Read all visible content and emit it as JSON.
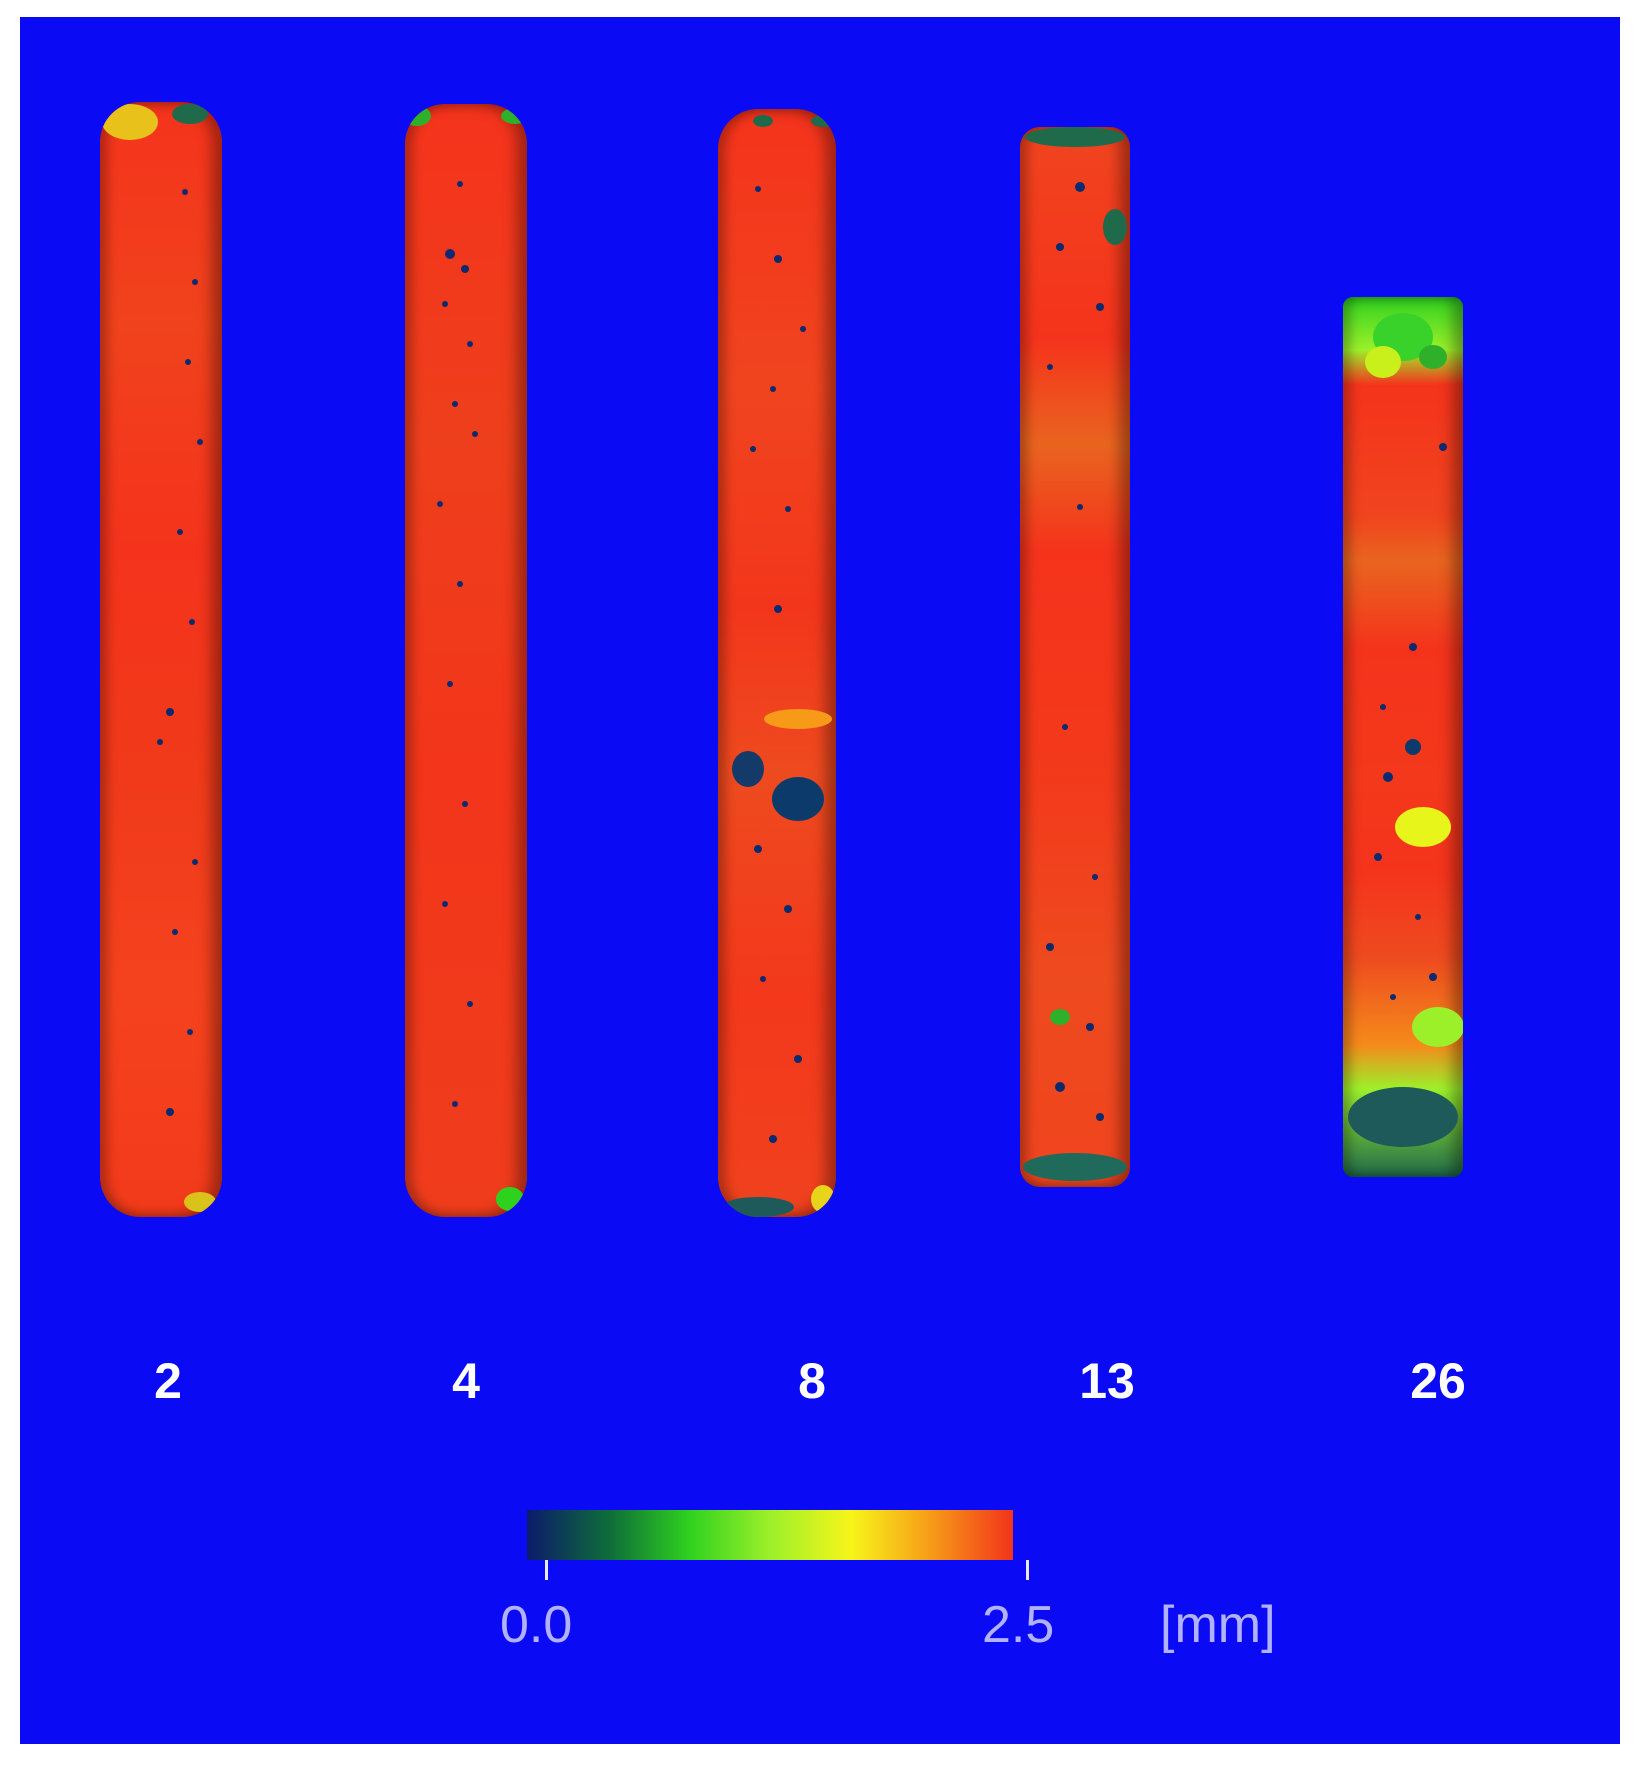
{
  "figure": {
    "background_color": "#0a0af5",
    "samples": [
      {
        "label": "2"
      },
      {
        "label": "4"
      },
      {
        "label": "8"
      },
      {
        "label": "13"
      },
      {
        "label": "26"
      }
    ]
  },
  "colorbar": {
    "min_label": "0.0",
    "max_label": "2.5",
    "unit": "[mm]",
    "range": [
      0.0,
      2.5
    ],
    "gradient": [
      "#0b1b6b",
      "#0e6b3a",
      "#2fd11f",
      "#9cf02a",
      "#f7f51a",
      "#f79a18",
      "#f2341a"
    ]
  }
}
